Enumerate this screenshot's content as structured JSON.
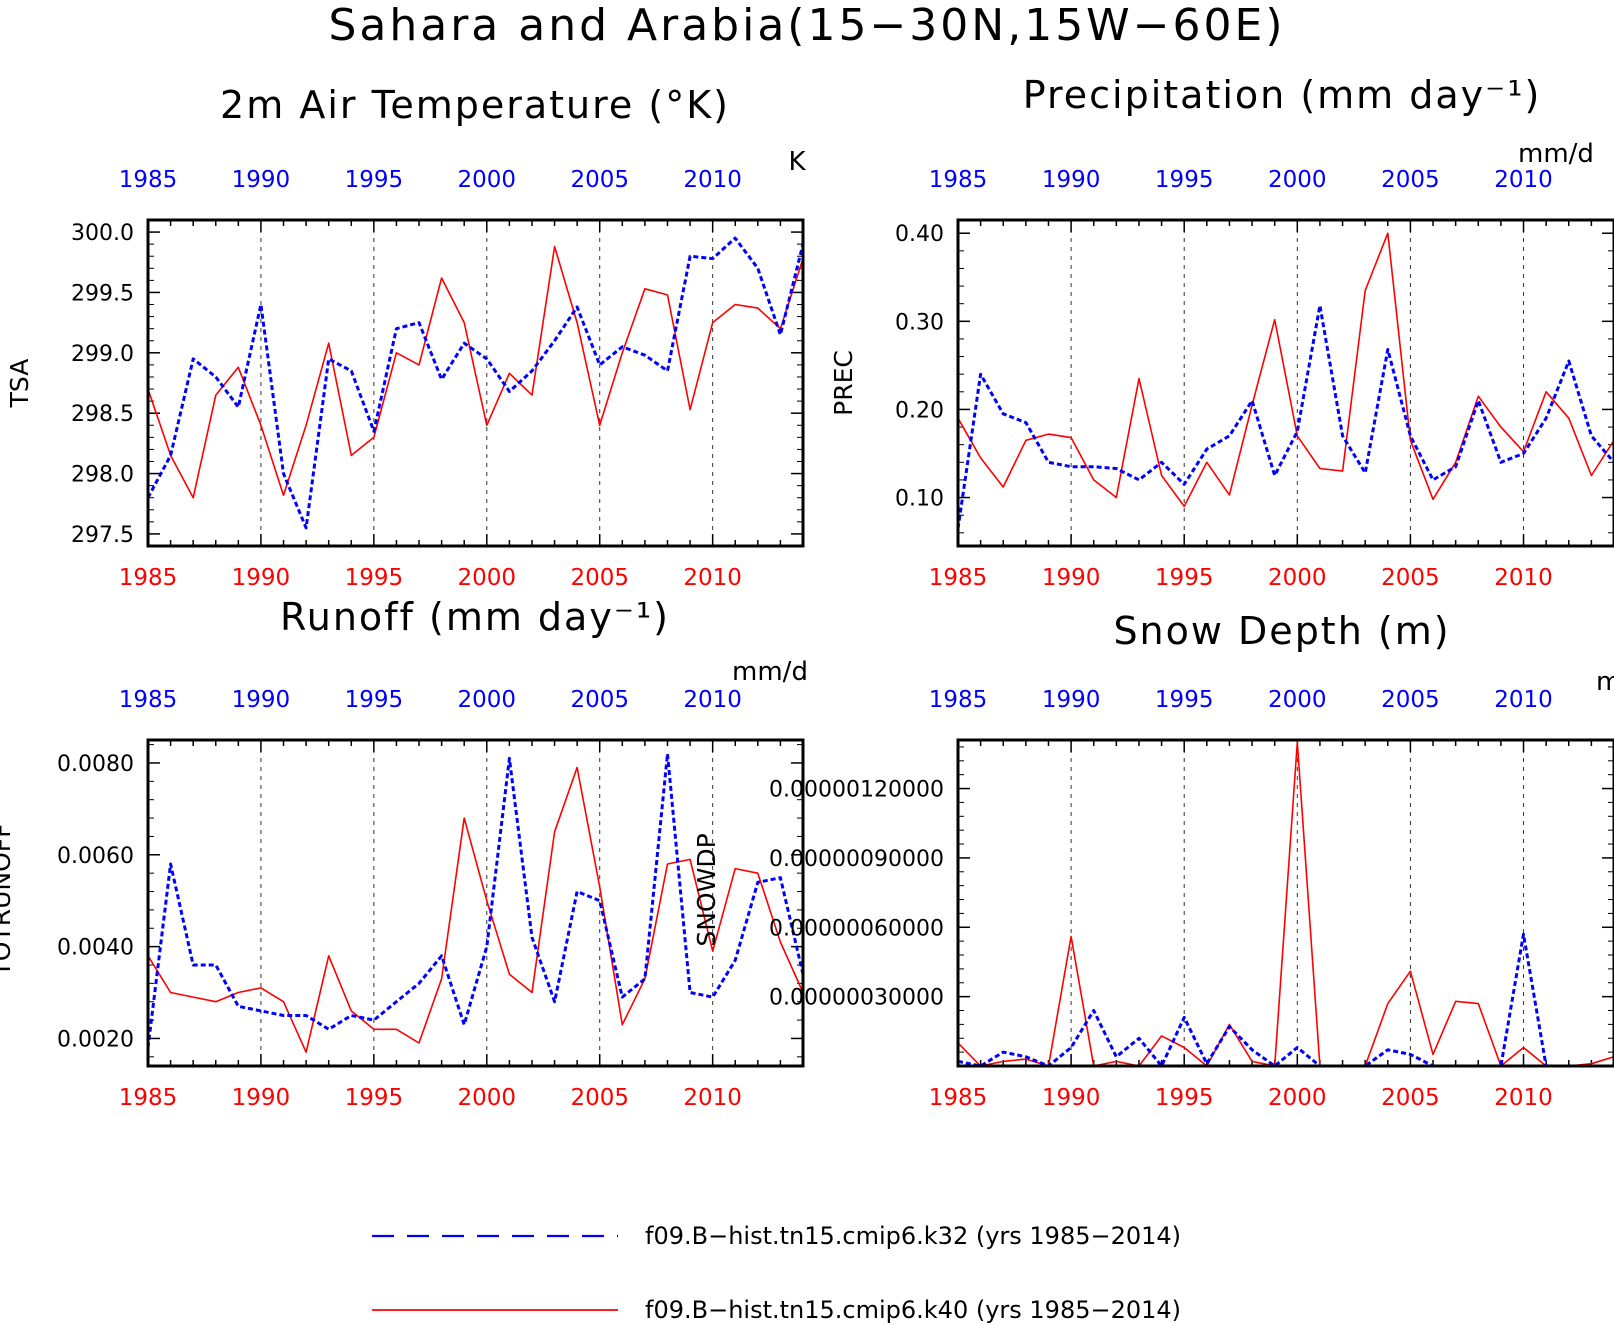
{
  "figure_title": "Sahara and Arabia(15−30N,15W−60E)",
  "colors": {
    "series_a": "#0000ff",
    "series_b": "#ff0000",
    "axis": "#000000"
  },
  "legend": [
    {
      "label": "f09.B−hist.tn15.cmip6.k32 (yrs 1985−2014)",
      "color": "#0000ff",
      "style": "dashed"
    },
    {
      "label": "f09.B−hist.tn15.cmip6.k40 (yrs 1985−2014)",
      "color": "#ff0000",
      "style": "solid"
    }
  ],
  "chart_data": [
    {
      "type": "line",
      "title": "2m Air Temperature (°K)",
      "ylabel": "TSA",
      "units": "K",
      "xlim": [
        1985,
        2014
      ],
      "ylim": [
        297.4,
        300.1
      ],
      "x_ticks": [
        "1985",
        "1990",
        "1995",
        "2000",
        "2005",
        "2010"
      ],
      "y_ticks": [
        "297.5",
        "298.0",
        "298.5",
        "299.0",
        "299.5",
        "300.0"
      ],
      "vertical_gridlines_at": [
        1990,
        1995,
        2000,
        2005,
        2010
      ],
      "x": [
        1985,
        1986,
        1987,
        1988,
        1989,
        1990,
        1991,
        1992,
        1993,
        1994,
        1995,
        1996,
        1997,
        1998,
        1999,
        2000,
        2001,
        2002,
        2003,
        2004,
        2005,
        2006,
        2007,
        2008,
        2009,
        2010,
        2011,
        2012,
        2013,
        2014
      ],
      "series": [
        {
          "values": [
            297.8,
            298.15,
            298.95,
            298.8,
            298.55,
            299.4,
            298.0,
            297.55,
            298.95,
            298.85,
            298.35,
            299.2,
            299.25,
            298.78,
            299.08,
            298.95,
            298.68,
            298.85,
            299.1,
            299.38,
            298.9,
            299.05,
            298.98,
            298.85,
            299.8,
            299.78,
            299.95,
            299.7,
            299.15,
            299.9
          ]
        },
        {
          "values": [
            298.7,
            298.15,
            297.8,
            298.65,
            298.88,
            298.4,
            297.82,
            298.4,
            299.08,
            298.15,
            298.3,
            299.0,
            298.9,
            299.62,
            299.25,
            298.4,
            298.83,
            298.65,
            299.88,
            299.25,
            298.4,
            299.0,
            299.53,
            299.48,
            298.53,
            299.25,
            299.4,
            299.37,
            299.2,
            299.78
          ]
        }
      ]
    },
    {
      "type": "line",
      "title": "Precipitation (mm day⁻¹)",
      "ylabel": "PREC",
      "units": "mm/d",
      "xlim": [
        1985,
        2014
      ],
      "ylim": [
        0.045,
        0.415
      ],
      "x_ticks": [
        "1985",
        "1990",
        "1995",
        "2000",
        "2005",
        "2010"
      ],
      "y_ticks": [
        "0.10",
        "0.20",
        "0.30",
        "0.40"
      ],
      "vertical_gridlines_at": [
        1990,
        1995,
        2000,
        2005,
        2010
      ],
      "x": [
        1985,
        1986,
        1987,
        1988,
        1989,
        1990,
        1991,
        1992,
        1993,
        1994,
        1995,
        1996,
        1997,
        1998,
        1999,
        2000,
        2001,
        2002,
        2003,
        2004,
        2005,
        2006,
        2007,
        2008,
        2009,
        2010,
        2011,
        2012,
        2013,
        2014
      ],
      "series": [
        {
          "values": [
            0.065,
            0.24,
            0.195,
            0.185,
            0.14,
            0.135,
            0.135,
            0.133,
            0.12,
            0.14,
            0.115,
            0.155,
            0.17,
            0.21,
            0.125,
            0.175,
            0.318,
            0.17,
            0.128,
            0.268,
            0.17,
            0.12,
            0.135,
            0.21,
            0.14,
            0.15,
            0.19,
            0.255,
            0.17,
            0.14
          ]
        },
        {
          "values": [
            0.19,
            0.145,
            0.112,
            0.165,
            0.172,
            0.168,
            0.12,
            0.1,
            0.235,
            0.125,
            0.09,
            0.14,
            0.103,
            0.205,
            0.302,
            0.17,
            0.133,
            0.13,
            0.335,
            0.4,
            0.165,
            0.098,
            0.14,
            0.215,
            0.18,
            0.152,
            0.22,
            0.19,
            0.125,
            0.165
          ]
        }
      ]
    },
    {
      "type": "line",
      "title": "Runoff (mm day⁻¹)",
      "ylabel": "TOTRUNOFF",
      "units": "mm/d",
      "xlim": [
        1985,
        2014
      ],
      "ylim": [
        0.0014,
        0.0085
      ],
      "x_ticks": [
        "1985",
        "1990",
        "1995",
        "2000",
        "2005",
        "2010"
      ],
      "y_ticks": [
        "0.0020",
        "0.0040",
        "0.0060",
        "0.0080"
      ],
      "vertical_gridlines_at": [
        1990,
        1995,
        2000,
        2005,
        2010
      ],
      "x": [
        1985,
        1986,
        1987,
        1988,
        1989,
        1990,
        1991,
        1992,
        1993,
        1994,
        1995,
        1996,
        1997,
        1998,
        1999,
        2000,
        2001,
        2002,
        2003,
        2004,
        2005,
        2006,
        2007,
        2008,
        2009,
        2010,
        2011,
        2012,
        2013,
        2014
      ],
      "series": [
        {
          "values": [
            0.0018,
            0.0058,
            0.0036,
            0.0036,
            0.0027,
            0.0026,
            0.0025,
            0.0025,
            0.0022,
            0.0025,
            0.0024,
            0.0028,
            0.0032,
            0.0038,
            0.0023,
            0.004,
            0.0081,
            0.0042,
            0.0028,
            0.0052,
            0.005,
            0.0029,
            0.0033,
            0.0082,
            0.003,
            0.0029,
            0.0037,
            0.0054,
            0.0055,
            0.0034
          ]
        },
        {
          "values": [
            0.0038,
            0.003,
            0.0029,
            0.0028,
            0.003,
            0.0031,
            0.0028,
            0.0017,
            0.0038,
            0.0026,
            0.0022,
            0.0022,
            0.0019,
            0.0033,
            0.0068,
            0.005,
            0.0034,
            0.003,
            0.0065,
            0.0079,
            0.0053,
            0.0023,
            0.0033,
            0.0058,
            0.0059,
            0.0039,
            0.0057,
            0.0056,
            0.0041,
            0.003
          ]
        }
      ]
    },
    {
      "type": "line",
      "title": "Snow Depth (m)",
      "ylabel": "SNOWDP",
      "units": "m",
      "xlim": [
        1985,
        2014
      ],
      "ylim": [
        0,
        1.41e-06
      ],
      "x_ticks": [
        "1985",
        "1990",
        "1995",
        "2000",
        "2005",
        "2010"
      ],
      "y_ticks": [
        "0.00000030000",
        "0.00000060000",
        "0.00000090000",
        "0.00000120000"
      ],
      "vertical_gridlines_at": [
        1990,
        1995,
        2000,
        2005,
        2010
      ],
      "x": [
        1985,
        1986,
        1987,
        1988,
        1989,
        1990,
        1991,
        1992,
        1993,
        1994,
        1995,
        1996,
        1997,
        1998,
        1999,
        2000,
        2001,
        2002,
        2003,
        2004,
        2005,
        2006,
        2007,
        2008,
        2009,
        2010,
        2011,
        2012,
        2013,
        2014
      ],
      "series": [
        {
          "values": [
            2e-08,
            0.0,
            6e-08,
            4e-08,
            0.0,
            8e-08,
            2.4e-07,
            4e-08,
            1.2e-07,
            0.0,
            2.1e-07,
            1e-08,
            1.7e-07,
            7e-08,
            0.0,
            8e-08,
            0.0,
            0.0,
            0.0,
            7e-08,
            5e-08,
            0.0,
            0.0,
            0.0,
            0.0,
            5.7e-07,
            0.0,
            0.0,
            0.0,
            0.0
          ]
        },
        {
          "values": [
            1e-07,
            0.0,
            2e-08,
            3e-08,
            0.0,
            5.6e-07,
            0.0,
            2e-08,
            0.0,
            1.3e-07,
            8e-08,
            0.0,
            1.8e-07,
            2e-08,
            0.0,
            1.4e-06,
            0.0,
            0.0,
            0.0,
            2.7e-07,
            4.1e-07,
            5e-08,
            2.8e-07,
            2.7e-07,
            0.0,
            8e-08,
            0.0,
            0.0,
            1e-08,
            4e-08
          ]
        }
      ]
    }
  ]
}
